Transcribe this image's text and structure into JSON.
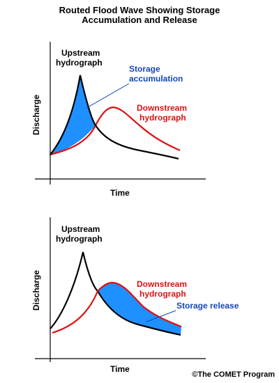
{
  "title": {
    "line1": "Routed Flood Wave Showing Storage",
    "line2": "Accumulation and Release"
  },
  "panels": [
    {
      "id": "accumulation",
      "y_label": "Discharge",
      "x_label": "Time",
      "upstream_label_1": "Upstream",
      "upstream_label_2": "hydrograph",
      "downstream_label_1": "Downstream",
      "downstream_label_2": "hydrograph",
      "storage_label_1": "Storage",
      "storage_label_2": "accumulation"
    },
    {
      "id": "release",
      "y_label": "Discharge",
      "x_label": "Time",
      "upstream_label_1": "Upstream",
      "upstream_label_2": "hydrograph",
      "downstream_label_1": "Downstream",
      "downstream_label_2": "hydrograph",
      "storage_label_1": "Storage release"
    }
  ],
  "credit": "©The COMET Program",
  "colors": {
    "upstream": "#000000",
    "downstream": "#e01010",
    "storage_fill": "#1e90ff",
    "storage_text": "#1446b8"
  }
}
